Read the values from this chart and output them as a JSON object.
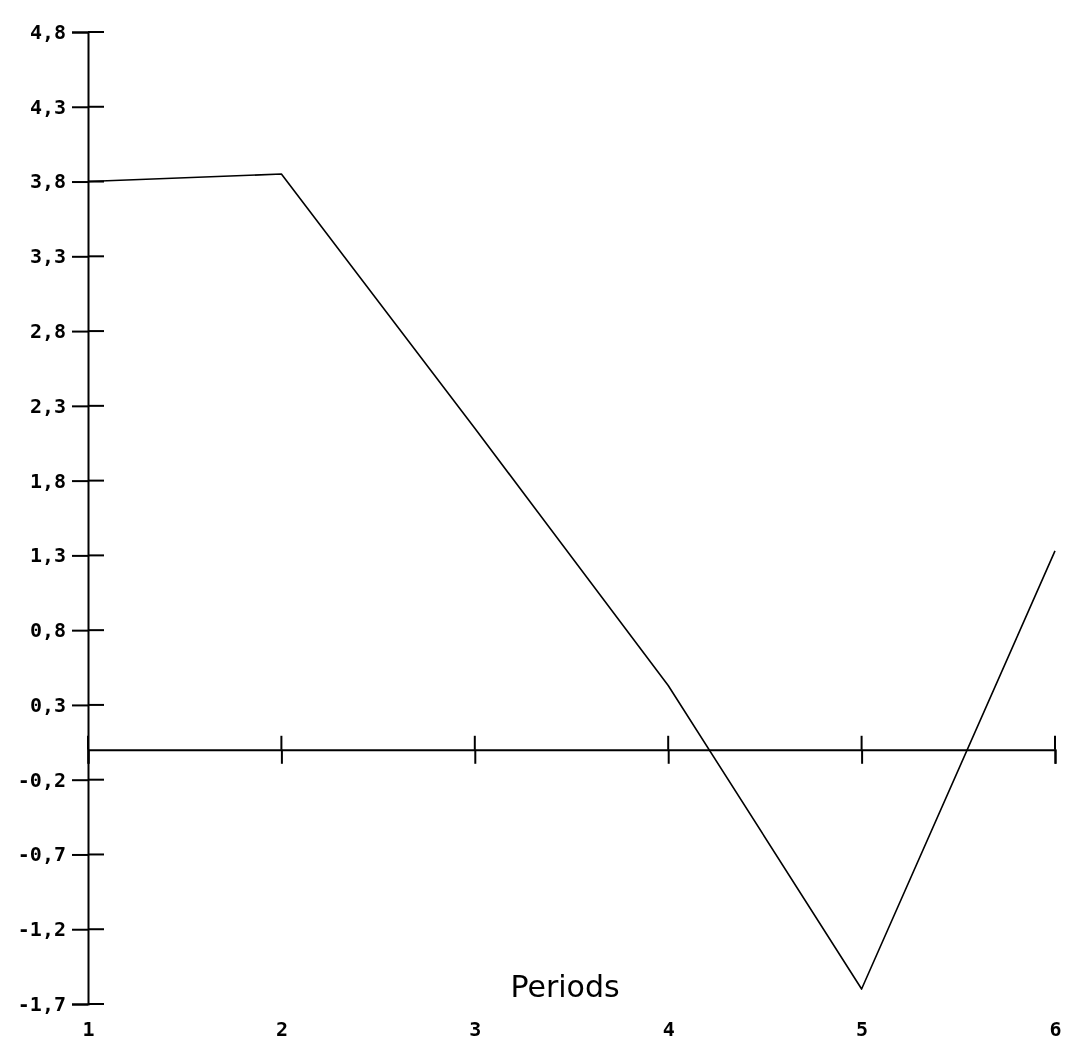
{
  "chart_data": {
    "type": "line",
    "xlabel": "Periods",
    "x": [
      1,
      2,
      3,
      4,
      5,
      6
    ],
    "values": [
      3.8,
      3.85,
      2.15,
      0.43,
      -1.6,
      1.33
    ],
    "color": "#000000",
    "xlim": [
      1,
      6
    ],
    "xticks": [
      1,
      2,
      3,
      4,
      5,
      6
    ],
    "ylim": [
      -1.7,
      4.8
    ],
    "yticks": [
      {
        "value": 4.8,
        "label": "4,8"
      },
      {
        "value": 4.3,
        "label": "4,3"
      },
      {
        "value": 3.8,
        "label": "3,8"
      },
      {
        "value": 3.3,
        "label": "3,3"
      },
      {
        "value": 2.8,
        "label": "2,8"
      },
      {
        "value": 2.3,
        "label": "2,3"
      },
      {
        "value": 1.8,
        "label": "1,8"
      },
      {
        "value": 1.3,
        "label": "1,3"
      },
      {
        "value": 0.8,
        "label": "0,8"
      },
      {
        "value": 0.3,
        "label": "0,3"
      },
      {
        "value": -0.2,
        "label": "-0,2"
      },
      {
        "value": -0.7,
        "label": "-0,7"
      },
      {
        "value": -1.2,
        "label": "-1,2"
      },
      {
        "value": -1.7,
        "label": "-1,7"
      }
    ],
    "grid": false,
    "marker": "none",
    "line_style": "solid"
  }
}
